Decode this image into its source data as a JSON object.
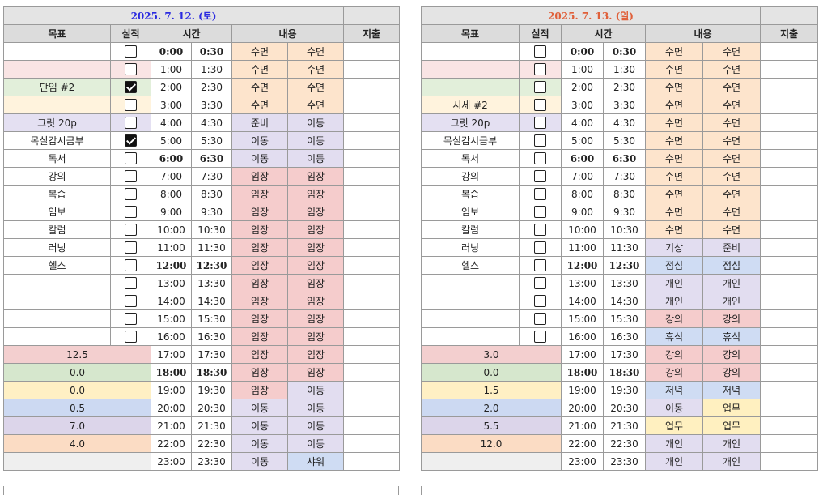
{
  "colors": {
    "pink": "#f9e4e4",
    "green": "#e2efda",
    "cream": "#fff3dd",
    "lavender": "#e4e0f2",
    "sleep": "#fde4cc",
    "move": "#e2ddf0",
    "work": "#f5cccc",
    "blue": "#cfdcf3",
    "yellow": "#fff0c0",
    "gray": "#f0f0f0",
    "s_red": "#f3cfcf",
    "s_green": "#d6e7cd",
    "s_yellow": "#fff0c4",
    "s_blue": "#ccd9f2",
    "s_purple": "#dcd5ea",
    "s_orange": "#fbdcc4",
    "s_gray": "#efefef"
  },
  "headers": {
    "goal": "목표",
    "done": "실적",
    "time": "시간",
    "content": "내용",
    "expense": "지출"
  },
  "days": [
    {
      "date": "2025. 7. 12. (토)",
      "rows": [
        {
          "goal": "",
          "gbg": "",
          "check": false,
          "t1": "0:00",
          "t2": "0:30",
          "bold": true,
          "c1": "수면",
          "b1": "sleep",
          "c2": "수면",
          "b2": "sleep"
        },
        {
          "goal": "",
          "gbg": "pink",
          "check": false,
          "t1": "1:00",
          "t2": "1:30",
          "bold": false,
          "c1": "수면",
          "b1": "sleep",
          "c2": "수면",
          "b2": "sleep"
        },
        {
          "goal": "단임 #2",
          "gbg": "green",
          "check": true,
          "t1": "2:00",
          "t2": "2:30",
          "bold": false,
          "c1": "수면",
          "b1": "sleep",
          "c2": "수면",
          "b2": "sleep"
        },
        {
          "goal": "",
          "gbg": "cream",
          "check": false,
          "t1": "3:00",
          "t2": "3:30",
          "bold": false,
          "c1": "수면",
          "b1": "sleep",
          "c2": "수면",
          "b2": "sleep"
        },
        {
          "goal": "그릿 20p",
          "gbg": "lavender",
          "check": false,
          "t1": "4:00",
          "t2": "4:30",
          "bold": false,
          "c1": "준비",
          "b1": "move",
          "c2": "이동",
          "b2": "move"
        },
        {
          "goal": "목실감시금부",
          "gbg": "",
          "check": true,
          "t1": "5:00",
          "t2": "5:30",
          "bold": false,
          "c1": "이동",
          "b1": "move",
          "c2": "이동",
          "b2": "move"
        },
        {
          "goal": "독서",
          "gbg": "",
          "check": false,
          "t1": "6:00",
          "t2": "6:30",
          "bold": true,
          "c1": "이동",
          "b1": "move",
          "c2": "이동",
          "b2": "move"
        },
        {
          "goal": "강의",
          "gbg": "",
          "check": false,
          "t1": "7:00",
          "t2": "7:30",
          "bold": false,
          "c1": "임장",
          "b1": "work",
          "c2": "임장",
          "b2": "work"
        },
        {
          "goal": "복습",
          "gbg": "",
          "check": false,
          "t1": "8:00",
          "t2": "8:30",
          "bold": false,
          "c1": "임장",
          "b1": "work",
          "c2": "임장",
          "b2": "work"
        },
        {
          "goal": "임보",
          "gbg": "",
          "check": false,
          "t1": "9:00",
          "t2": "9:30",
          "bold": false,
          "c1": "임장",
          "b1": "work",
          "c2": "임장",
          "b2": "work"
        },
        {
          "goal": "칼럼",
          "gbg": "",
          "check": false,
          "t1": "10:00",
          "t2": "10:30",
          "bold": false,
          "c1": "임장",
          "b1": "work",
          "c2": "임장",
          "b2": "work"
        },
        {
          "goal": "러닝",
          "gbg": "",
          "check": false,
          "t1": "11:00",
          "t2": "11:30",
          "bold": false,
          "c1": "임장",
          "b1": "work",
          "c2": "임장",
          "b2": "work"
        },
        {
          "goal": "헬스",
          "gbg": "",
          "check": false,
          "t1": "12:00",
          "t2": "12:30",
          "bold": true,
          "c1": "임장",
          "b1": "work",
          "c2": "임장",
          "b2": "work"
        },
        {
          "goal": "",
          "gbg": "",
          "check": false,
          "t1": "13:00",
          "t2": "13:30",
          "bold": false,
          "c1": "임장",
          "b1": "work",
          "c2": "임장",
          "b2": "work"
        },
        {
          "goal": "",
          "gbg": "",
          "check": false,
          "t1": "14:00",
          "t2": "14:30",
          "bold": false,
          "c1": "임장",
          "b1": "work",
          "c2": "임장",
          "b2": "work"
        },
        {
          "goal": "",
          "gbg": "",
          "check": false,
          "t1": "15:00",
          "t2": "15:30",
          "bold": false,
          "c1": "임장",
          "b1": "work",
          "c2": "임장",
          "b2": "work"
        },
        {
          "goal": "",
          "gbg": "",
          "check": false,
          "t1": "16:00",
          "t2": "16:30",
          "bold": false,
          "c1": "임장",
          "b1": "work",
          "c2": "임장",
          "b2": "work"
        }
      ],
      "summary": [
        {
          "val": "12.5",
          "bg": "s_red",
          "t1": "17:00",
          "t2": "17:30",
          "bold": false,
          "c1": "임장",
          "b1": "work",
          "c2": "임장",
          "b2": "work"
        },
        {
          "val": "0.0",
          "bg": "s_green",
          "t1": "18:00",
          "t2": "18:30",
          "bold": true,
          "c1": "임장",
          "b1": "work",
          "c2": "임장",
          "b2": "work"
        },
        {
          "val": "0.0",
          "bg": "s_yellow",
          "t1": "19:00",
          "t2": "19:30",
          "bold": false,
          "c1": "임장",
          "b1": "work",
          "c2": "이동",
          "b2": "move"
        },
        {
          "val": "0.5",
          "bg": "s_blue",
          "t1": "20:00",
          "t2": "20:30",
          "bold": false,
          "c1": "이동",
          "b1": "move",
          "c2": "이동",
          "b2": "move"
        },
        {
          "val": "7.0",
          "bg": "s_purple",
          "t1": "21:00",
          "t2": "21:30",
          "bold": false,
          "c1": "이동",
          "b1": "move",
          "c2": "이동",
          "b2": "move"
        },
        {
          "val": "4.0",
          "bg": "s_orange",
          "t1": "22:00",
          "t2": "22:30",
          "bold": false,
          "c1": "이동",
          "b1": "move",
          "c2": "이동",
          "b2": "move"
        },
        {
          "val": "",
          "bg": "s_gray",
          "t1": "23:00",
          "t2": "23:30",
          "bold": false,
          "c1": "이동",
          "b1": "move",
          "c2": "샤워",
          "b2": "blue"
        }
      ]
    },
    {
      "date": "2025. 7. 13. (일)",
      "rows": [
        {
          "goal": "",
          "gbg": "",
          "check": false,
          "t1": "0:00",
          "t2": "0:30",
          "bold": true,
          "c1": "수면",
          "b1": "sleep",
          "c2": "수면",
          "b2": "sleep"
        },
        {
          "goal": "",
          "gbg": "pink",
          "check": false,
          "t1": "1:00",
          "t2": "1:30",
          "bold": false,
          "c1": "수면",
          "b1": "sleep",
          "c2": "수면",
          "b2": "sleep"
        },
        {
          "goal": "",
          "gbg": "green",
          "check": false,
          "t1": "2:00",
          "t2": "2:30",
          "bold": false,
          "c1": "수면",
          "b1": "sleep",
          "c2": "수면",
          "b2": "sleep"
        },
        {
          "goal": "시세 #2",
          "gbg": "cream",
          "check": false,
          "t1": "3:00",
          "t2": "3:30",
          "bold": false,
          "c1": "수면",
          "b1": "sleep",
          "c2": "수면",
          "b2": "sleep"
        },
        {
          "goal": "그릿 20p",
          "gbg": "lavender",
          "check": false,
          "t1": "4:00",
          "t2": "4:30",
          "bold": false,
          "c1": "수면",
          "b1": "sleep",
          "c2": "수면",
          "b2": "sleep"
        },
        {
          "goal": "목실감시금부",
          "gbg": "",
          "check": false,
          "t1": "5:00",
          "t2": "5:30",
          "bold": false,
          "c1": "수면",
          "b1": "sleep",
          "c2": "수면",
          "b2": "sleep"
        },
        {
          "goal": "독서",
          "gbg": "",
          "check": false,
          "t1": "6:00",
          "t2": "6:30",
          "bold": true,
          "c1": "수면",
          "b1": "sleep",
          "c2": "수면",
          "b2": "sleep"
        },
        {
          "goal": "강의",
          "gbg": "",
          "check": false,
          "t1": "7:00",
          "t2": "7:30",
          "bold": false,
          "c1": "수면",
          "b1": "sleep",
          "c2": "수면",
          "b2": "sleep"
        },
        {
          "goal": "복습",
          "gbg": "",
          "check": false,
          "t1": "8:00",
          "t2": "8:30",
          "bold": false,
          "c1": "수면",
          "b1": "sleep",
          "c2": "수면",
          "b2": "sleep"
        },
        {
          "goal": "임보",
          "gbg": "",
          "check": false,
          "t1": "9:00",
          "t2": "9:30",
          "bold": false,
          "c1": "수면",
          "b1": "sleep",
          "c2": "수면",
          "b2": "sleep"
        },
        {
          "goal": "칼럼",
          "gbg": "",
          "check": false,
          "t1": "10:00",
          "t2": "10:30",
          "bold": false,
          "c1": "수면",
          "b1": "sleep",
          "c2": "수면",
          "b2": "sleep"
        },
        {
          "goal": "러닝",
          "gbg": "",
          "check": false,
          "t1": "11:00",
          "t2": "11:30",
          "bold": false,
          "c1": "기상",
          "b1": "move",
          "c2": "준비",
          "b2": "move"
        },
        {
          "goal": "헬스",
          "gbg": "",
          "check": false,
          "t1": "12:00",
          "t2": "12:30",
          "bold": true,
          "c1": "점심",
          "b1": "blue",
          "c2": "점심",
          "b2": "blue"
        },
        {
          "goal": "",
          "gbg": "",
          "check": false,
          "t1": "13:00",
          "t2": "13:30",
          "bold": false,
          "c1": "개인",
          "b1": "move",
          "c2": "개인",
          "b2": "move"
        },
        {
          "goal": "",
          "gbg": "",
          "check": false,
          "t1": "14:00",
          "t2": "14:30",
          "bold": false,
          "c1": "개인",
          "b1": "move",
          "c2": "개인",
          "b2": "move"
        },
        {
          "goal": "",
          "gbg": "",
          "check": false,
          "t1": "15:00",
          "t2": "15:30",
          "bold": false,
          "c1": "강의",
          "b1": "work",
          "c2": "강의",
          "b2": "work"
        },
        {
          "goal": "",
          "gbg": "",
          "check": false,
          "t1": "16:00",
          "t2": "16:30",
          "bold": false,
          "c1": "휴식",
          "b1": "blue",
          "c2": "휴식",
          "b2": "blue"
        }
      ],
      "summary": [
        {
          "val": "3.0",
          "bg": "s_red",
          "t1": "17:00",
          "t2": "17:30",
          "bold": false,
          "c1": "강의",
          "b1": "work",
          "c2": "강의",
          "b2": "work"
        },
        {
          "val": "0.0",
          "bg": "s_green",
          "t1": "18:00",
          "t2": "18:30",
          "bold": true,
          "c1": "강의",
          "b1": "work",
          "c2": "강의",
          "b2": "work"
        },
        {
          "val": "1.5",
          "bg": "s_yellow",
          "t1": "19:00",
          "t2": "19:30",
          "bold": false,
          "c1": "저녁",
          "b1": "blue",
          "c2": "저녁",
          "b2": "blue"
        },
        {
          "val": "2.0",
          "bg": "s_blue",
          "t1": "20:00",
          "t2": "20:30",
          "bold": false,
          "c1": "이동",
          "b1": "move",
          "c2": "업무",
          "b2": "yellow"
        },
        {
          "val": "5.5",
          "bg": "s_purple",
          "t1": "21:00",
          "t2": "21:30",
          "bold": false,
          "c1": "업무",
          "b1": "yellow",
          "c2": "업무",
          "b2": "yellow"
        },
        {
          "val": "12.0",
          "bg": "s_orange",
          "t1": "22:00",
          "t2": "22:30",
          "bold": false,
          "c1": "개인",
          "b1": "move",
          "c2": "개인",
          "b2": "move"
        },
        {
          "val": "",
          "bg": "s_gray",
          "t1": "23:00",
          "t2": "23:30",
          "bold": false,
          "c1": "개인",
          "b1": "move",
          "c2": "개인",
          "b2": "move"
        }
      ]
    }
  ]
}
